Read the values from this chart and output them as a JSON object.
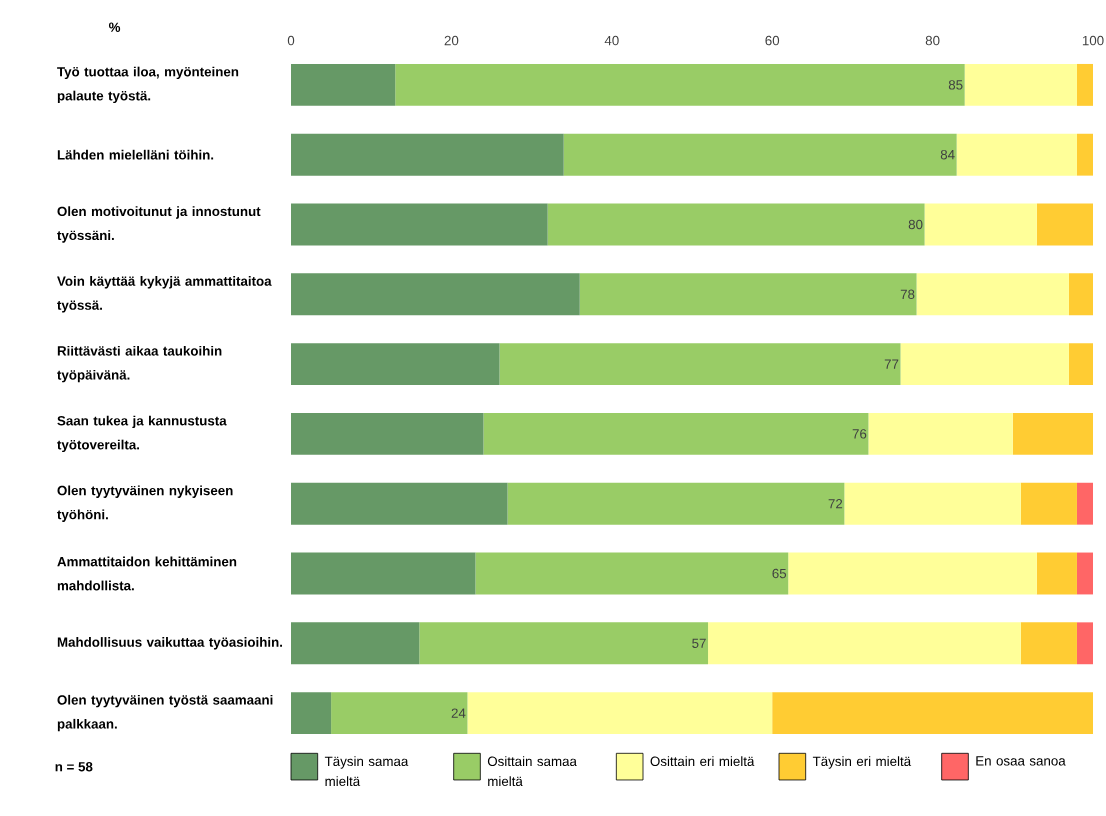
{
  "chart_data": {
    "type": "bar",
    "orientation": "horizontal",
    "stacked": true,
    "xlabel": "%",
    "categories": [
      "Työ tuottaa iloa, myönteinen palaute työstä.",
      "Lähden mielelläni töihin.",
      "Olen motivoitunut ja innostunut työssäni.",
      "Voin käyttää kykyjä ammattitaitoa työssä.",
      "Riittävästi aikaa taukoihin työpäivänä.",
      "Saan tukea ja kannustusta työtovereilta.",
      "Olen tyytyväinen nykyiseen työhöni.",
      "Ammattitaidon kehittäminen mahdollista.",
      "Mahdollisuus vaikuttaa työasioihin.",
      "Olen tyytyväinen työstä saamaani palkkaan."
    ],
    "series": [
      {
        "name": "Täysin samaa mieltä",
        "color": "#669966",
        "values": [
          13,
          34,
          32,
          36,
          26,
          24,
          27,
          23,
          16,
          5
        ]
      },
      {
        "name": "Osittain samaa mieltä",
        "color": "#99cc66",
        "values": [
          71,
          49,
          47,
          42,
          50,
          48,
          42,
          39,
          36,
          17
        ]
      },
      {
        "name": "Osittain eri mieltä",
        "color": "#ffff99",
        "values": [
          14,
          15,
          14,
          19,
          21,
          18,
          22,
          31,
          39,
          38
        ]
      },
      {
        "name": "Täysin eri mieltä",
        "color": "#ffcc33",
        "values": [
          2,
          2,
          7,
          3,
          3,
          10,
          7,
          5,
          7,
          40
        ]
      },
      {
        "name": "En osaa sanoa",
        "color": "#ff6666",
        "values": [
          null,
          null,
          null,
          null,
          null,
          null,
          2,
          2,
          2,
          null
        ]
      }
    ],
    "xlim": [
      0,
      100
    ],
    "xticks": [
      0,
      20,
      40,
      60,
      80,
      100
    ],
    "legend": "bottom",
    "grid": false,
    "annotations": [
      {
        "text": "85",
        "x": 84,
        "y": "Työ tuottaa iloa, myönteinen palaute työstä."
      },
      {
        "text": "84",
        "x": 83,
        "y": "Lähden mielelläni töihin."
      },
      {
        "text": "80",
        "x": 79,
        "y": "Olen motivoitunut ja innostunut työssäni."
      },
      {
        "text": "78",
        "x": 78,
        "y": "Voin käyttää kykyjä ammattitaitoa työssä."
      },
      {
        "text": "77",
        "x": 76,
        "y": "Riittävästi aikaa taukoihin työpäivänä."
      },
      {
        "text": "76",
        "x": 72,
        "y": "Saan tukea ja kannustusta työtovereilta."
      },
      {
        "text": "72",
        "x": 69,
        "y": "Olen tyytyväinen nykyiseen työhöni."
      },
      {
        "text": "65",
        "x": 62,
        "y": "Ammattitaidon kehittäminen mahdollista."
      },
      {
        "text": "57",
        "x": 52,
        "y": "Mahdollisuus vaikuttaa työasioihin."
      },
      {
        "text": "24",
        "x": 22,
        "y": "Olen tyytyväinen työstä saamaani palkkaan."
      },
      "n = 58"
    ]
  }
}
